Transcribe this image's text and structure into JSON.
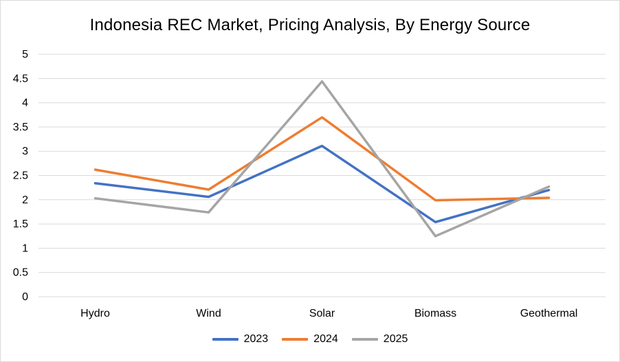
{
  "chart_data": {
    "type": "line",
    "title": "Indonesia REC Market, Pricing Analysis, By Energy Source",
    "xlabel": "",
    "ylabel": "",
    "categories": [
      "Hydro",
      "Wind",
      "Solar",
      "Biomass",
      "Geothermal"
    ],
    "ylim": [
      0,
      5
    ],
    "yticks": [
      "0",
      "0.5",
      "1",
      "1.5",
      "2",
      "2.5",
      "3",
      "3.5",
      "4",
      "4.5",
      "5"
    ],
    "grid": true,
    "legend": "bottom",
    "series": [
      {
        "name": "2023",
        "color": "#4472c4",
        "values": [
          2.34,
          2.06,
          3.11,
          1.54,
          2.2
        ]
      },
      {
        "name": "2024",
        "color": "#ed7d31",
        "values": [
          2.62,
          2.21,
          3.7,
          1.99,
          2.04
        ]
      },
      {
        "name": "2025",
        "color": "#a5a5a5",
        "values": [
          2.03,
          1.74,
          4.44,
          1.25,
          2.27
        ]
      }
    ]
  }
}
